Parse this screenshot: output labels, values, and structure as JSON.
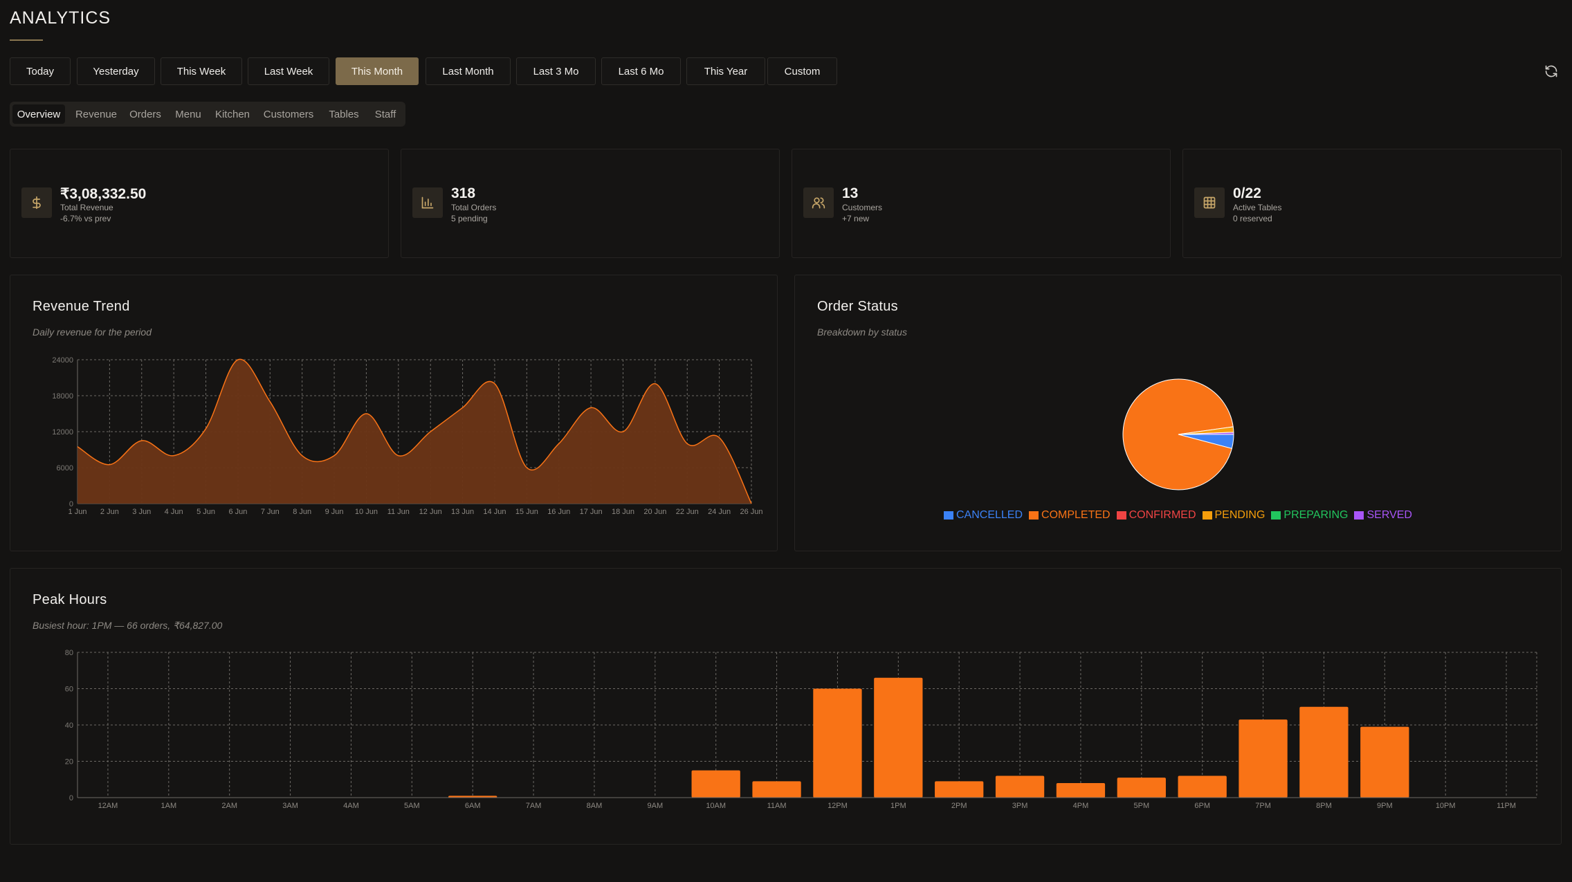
{
  "page": {
    "title": "ANALYTICS"
  },
  "ranges": [
    "Today",
    "Yesterday",
    "This Week",
    "Last Week",
    "This Month",
    "Last Month",
    "Last 3 Mo",
    "Last 6 Mo",
    "This Year",
    "Custom"
  ],
  "active_range": "This Month",
  "tabs": [
    "Overview",
    "Revenue",
    "Orders",
    "Menu",
    "Kitchen",
    "Customers",
    "Tables",
    "Staff"
  ],
  "active_tab": "Overview",
  "stats": [
    {
      "icon": "dollar-icon",
      "value": "₹3,08,332.50",
      "label": "Total Revenue",
      "sub": "-6.7% vs prev"
    },
    {
      "icon": "bar-chart-icon",
      "value": "318",
      "label": "Total Orders",
      "sub": "5 pending"
    },
    {
      "icon": "users-icon",
      "value": "13",
      "label": "Customers",
      "sub": "+7 new"
    },
    {
      "icon": "table-grid-icon",
      "value": "0/22",
      "label": "Active Tables",
      "sub": "0 reserved"
    }
  ],
  "revenue_card": {
    "title": "Revenue Trend",
    "subtitle": "Daily revenue for the period"
  },
  "status_card": {
    "title": "Order Status",
    "subtitle": "Breakdown by status"
  },
  "peak_card": {
    "title": "Peak Hours",
    "subtitle": "Busiest hour: 1PM — 66 orders, ₹64,827.00"
  },
  "colors": {
    "accent": "#f97316",
    "accent_fill": "#6b3516",
    "gold": "#7c6a4a"
  },
  "chart_data": [
    {
      "type": "area",
      "x": [
        "1 Jun",
        "2 Jun",
        "3 Jun",
        "4 Jun",
        "5 Jun",
        "6 Jun",
        "7 Jun",
        "8 Jun",
        "9 Jun",
        "10 Jun",
        "11 Jun",
        "12 Jun",
        "13 Jun",
        "14 Jun",
        "15 Jun",
        "16 Jun",
        "17 Jun",
        "18 Jun",
        "20 Jun",
        "22 Jun",
        "24 Jun",
        "26 Jun"
      ],
      "values": [
        9500,
        6500,
        10500,
        8000,
        12500,
        24000,
        17000,
        8000,
        8000,
        15000,
        8000,
        12000,
        16000,
        20000,
        6000,
        10000,
        16000,
        12000,
        20000,
        10000,
        11000,
        0
      ],
      "ylim": [
        0,
        24000
      ],
      "yticks": [
        0,
        6000,
        12000,
        18000,
        24000
      ],
      "grid": true
    },
    {
      "type": "pie",
      "labels": [
        "CANCELLED",
        "COMPLETED",
        "CONFIRMED",
        "PENDING",
        "PREPARING",
        "SERVED"
      ],
      "values": [
        13,
        298,
        0,
        5,
        0,
        2
      ],
      "colors": [
        "#3b82f6",
        "#f97316",
        "#ef4444",
        "#f59e0b",
        "#22c55e",
        "#a855f7"
      ],
      "legend": "bottom"
    },
    {
      "type": "bar",
      "categories": [
        "12AM",
        "1AM",
        "2AM",
        "3AM",
        "4AM",
        "5AM",
        "6AM",
        "7AM",
        "8AM",
        "9AM",
        "10AM",
        "11AM",
        "12PM",
        "1PM",
        "2PM",
        "3PM",
        "4PM",
        "5PM",
        "6PM",
        "7PM",
        "8PM",
        "9PM",
        "10PM",
        "11PM"
      ],
      "values": [
        0,
        0,
        0,
        0,
        0,
        0,
        1,
        0,
        0,
        0,
        15,
        9,
        60,
        66,
        9,
        12,
        8,
        11,
        12,
        43,
        50,
        39,
        0,
        0
      ],
      "ylim": [
        0,
        80
      ],
      "yticks": [
        0,
        20,
        40,
        60,
        80
      ],
      "grid": true
    }
  ]
}
